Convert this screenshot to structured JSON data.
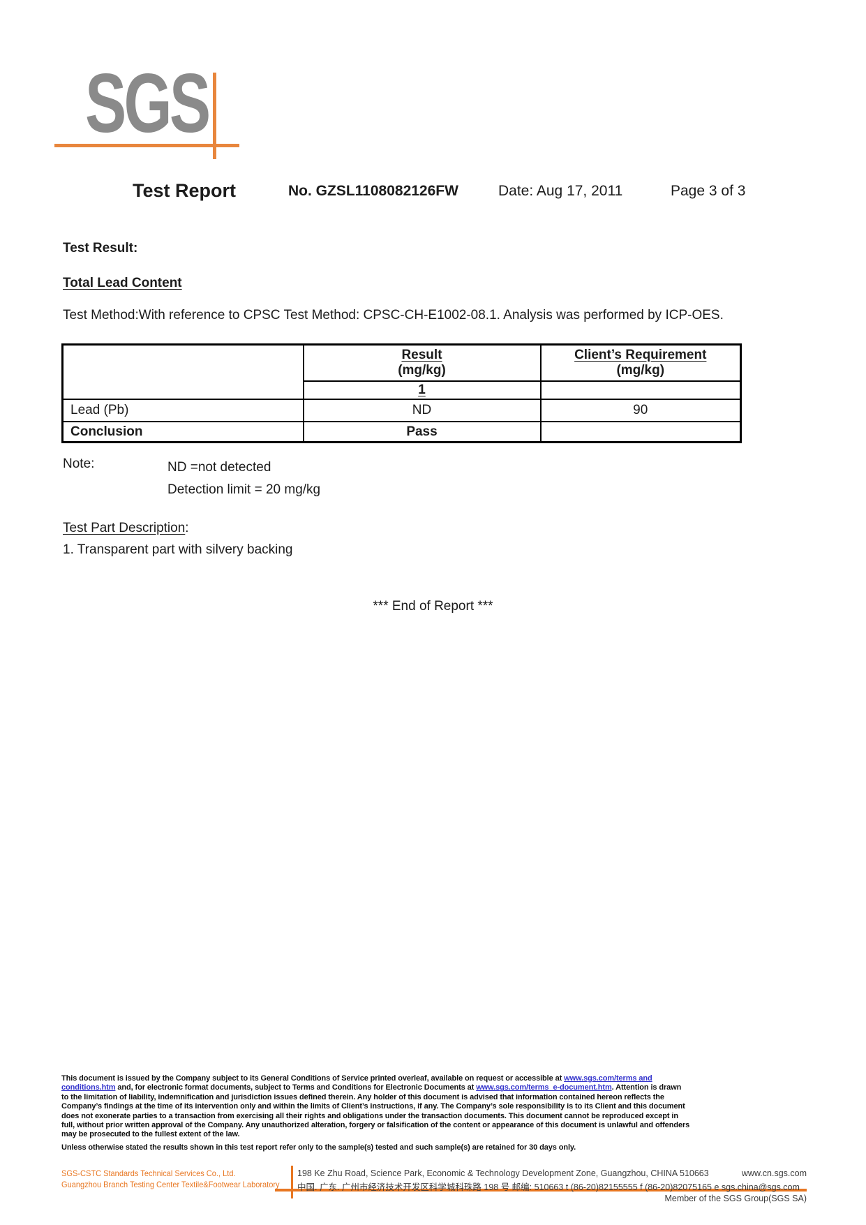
{
  "colors": {
    "accent_orange": "#e87722",
    "logo_gray": "#8a8a8a",
    "link_blue": "#3333cc"
  },
  "logo": {
    "text": "SGS"
  },
  "header": {
    "title": "Test Report",
    "report_no": "No. GZSL1108082126FW",
    "date": "Date: Aug 17, 2011",
    "page": "Page 3 of 3"
  },
  "body": {
    "test_result_label": "Test Result:",
    "section_title": "Total Lead Content",
    "test_method": "Test Method:With reference to CPSC Test Method: CPSC-CH-E1002-08.1. Analysis was performed by ICP-OES.",
    "table": {
      "col2_header_line1": "Result",
      "col2_header_line2": "(mg/kg)",
      "col3_header_line1": "Client’s Requirement",
      "col3_header_line2": "(mg/kg)",
      "sample_no": "1",
      "rows": [
        {
          "name": "Lead (Pb)",
          "result": "ND",
          "requirement": "90"
        },
        {
          "name": "Conclusion",
          "result": "Pass",
          "requirement": ""
        }
      ]
    },
    "note": {
      "label": "Note:",
      "line1": "ND =not detected",
      "line2": "Detection limit = 20 mg/kg"
    },
    "test_part": {
      "title": "Test Part Description",
      "colon": ":",
      "item1": "1. Transparent part with silvery backing"
    },
    "end_of_report": "*** End of Report ***"
  },
  "footer": {
    "legal_lines": [
      [
        {
          "t": "This document is issued by the Company subject to its General Conditions of  Service printed overleaf, available on request or accessible at "
        },
        {
          "t": "www.sgs.com/terms and",
          "link": true
        }
      ],
      [
        {
          "t": "conditions.htm",
          "link": true
        },
        {
          "t": " and, for electronic format documents, subject to Terms and Conditions for Electronic Documents at "
        },
        {
          "t": "www.sgs.com/terms_e-document.htm",
          "link": true
        },
        {
          "t": ". Attention is drawn"
        }
      ],
      [
        {
          "t": "to the limitation of liability, indemnification and jurisdiction issues defined therein. Any holder of this document is advised that information contained hereon reflects the"
        }
      ],
      [
        {
          "t": "Company’s findings at the time of its intervention only and within the limits of Client’s instructions, if any. The Company’s sole responsibility is to its Client and this document"
        }
      ],
      [
        {
          "t": "does not exonerate parties to a transaction from exercising all their rights and obligations under the transaction documents. This document cannot be reproduced except in"
        }
      ],
      [
        {
          "t": "full, without prior written approval of the Company. Any unauthorized alteration, forgery or falsification of the content or appearance of this document is unlawful and offenders"
        }
      ],
      [
        {
          "t": "may be prosecuted to the fullest extent of the law."
        }
      ],
      [
        {
          "t": "Unless otherwise stated the results shown in this test report refer only to the sample(s) tested and such sample(s) are retained for 30 days only."
        }
      ]
    ],
    "company": {
      "name": "SGS-CSTC Standards Technical Services Co., Ltd.",
      "branch": "Guangzhou Branch Testing Center Textile&Footwear Laboratory",
      "address_en": "198 Ke Zhu Road, Science Park, Economic & Technology Development Zone, Guangzhou, CHINA  510663",
      "website": "www.cn.sgs.com",
      "address_cn": "中国. 广东. 广州市经济技术开发区科学城科珠路 198 号  邮编: 510663  t (86-20)82155555  f (86-20)82075165  e sgs.china@sgs.com",
      "member": "Member of the SGS Group(SGS SA)"
    }
  }
}
